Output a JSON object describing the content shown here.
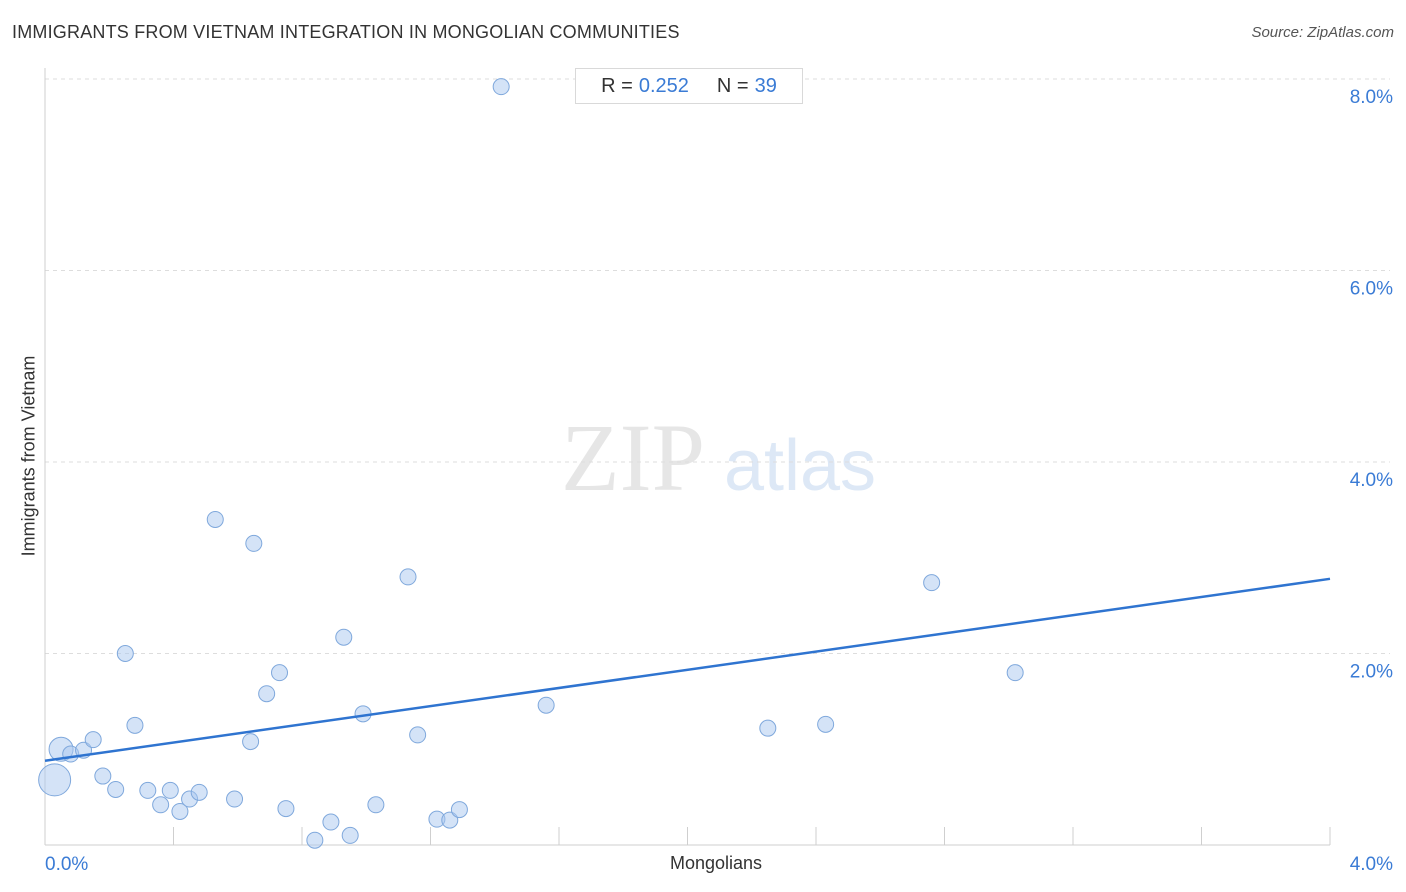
{
  "header": {
    "title": "IMMIGRANTS FROM VIETNAM INTEGRATION IN MONGOLIAN COMMUNITIES",
    "source": "Source: ZipAtlas.com"
  },
  "stats": {
    "r_label": "R =",
    "r_value": "0.252",
    "n_label": "N =",
    "n_value": "39"
  },
  "watermark": {
    "zip": "ZIP",
    "atlas": "atlas"
  },
  "colors": {
    "point_fill": "#a9c8f0",
    "point_stroke": "#7fa8dc",
    "trend_line": "#2f74d0",
    "tick_label": "#3a7bd5",
    "grid": "#dddddd"
  },
  "chart_data": {
    "type": "scatter",
    "xlabel": "Mongolians",
    "ylabel": "Immigrants from Vietnam",
    "xlim": [
      0,
      4.0
    ],
    "ylim": [
      0,
      8.0
    ],
    "x_tick_labels": [
      {
        "value": 0,
        "label": "0.0%"
      },
      {
        "value": 4.0,
        "label": "4.0%"
      }
    ],
    "y_tick_labels": [
      {
        "value": 2.0,
        "label": "2.0%"
      },
      {
        "value": 4.0,
        "label": "4.0%"
      },
      {
        "value": 6.0,
        "label": "6.0%"
      },
      {
        "value": 8.0,
        "label": "8.0%"
      }
    ],
    "grid": "horizontal dashed",
    "trend_line": {
      "x": [
        0,
        4.0
      ],
      "y": [
        0.88,
        2.78
      ]
    },
    "points": [
      {
        "x": 0.03,
        "y": 0.68,
        "size": "large"
      },
      {
        "x": 0.05,
        "y": 1.0,
        "size": "medium"
      },
      {
        "x": 0.08,
        "y": 0.95,
        "size": "small"
      },
      {
        "x": 0.12,
        "y": 0.99,
        "size": "small"
      },
      {
        "x": 0.15,
        "y": 1.1,
        "size": "small"
      },
      {
        "x": 0.18,
        "y": 0.72,
        "size": "small"
      },
      {
        "x": 0.22,
        "y": 0.58,
        "size": "small"
      },
      {
        "x": 0.25,
        "y": 2.0,
        "size": "small"
      },
      {
        "x": 0.28,
        "y": 1.25,
        "size": "small"
      },
      {
        "x": 0.32,
        "y": 0.57,
        "size": "small"
      },
      {
        "x": 0.36,
        "y": 0.42,
        "size": "small"
      },
      {
        "x": 0.39,
        "y": 0.57,
        "size": "small"
      },
      {
        "x": 0.42,
        "y": 0.35,
        "size": "small"
      },
      {
        "x": 0.45,
        "y": 0.48,
        "size": "small"
      },
      {
        "x": 0.48,
        "y": 0.55,
        "size": "small"
      },
      {
        "x": 0.53,
        "y": 3.4,
        "size": "small"
      },
      {
        "x": 0.59,
        "y": 0.48,
        "size": "small"
      },
      {
        "x": 0.64,
        "y": 1.08,
        "size": "small"
      },
      {
        "x": 0.65,
        "y": 3.15,
        "size": "small"
      },
      {
        "x": 0.69,
        "y": 1.58,
        "size": "small"
      },
      {
        "x": 0.73,
        "y": 1.8,
        "size": "small"
      },
      {
        "x": 0.75,
        "y": 0.38,
        "size": "small"
      },
      {
        "x": 0.84,
        "y": 0.05,
        "size": "small"
      },
      {
        "x": 0.89,
        "y": 0.24,
        "size": "small"
      },
      {
        "x": 0.93,
        "y": 2.17,
        "size": "small"
      },
      {
        "x": 0.95,
        "y": 0.1,
        "size": "small"
      },
      {
        "x": 0.99,
        "y": 1.37,
        "size": "small"
      },
      {
        "x": 1.03,
        "y": 0.42,
        "size": "small"
      },
      {
        "x": 1.13,
        "y": 2.8,
        "size": "small"
      },
      {
        "x": 1.16,
        "y": 1.15,
        "size": "small"
      },
      {
        "x": 1.22,
        "y": 0.27,
        "size": "small"
      },
      {
        "x": 1.26,
        "y": 0.26,
        "size": "small"
      },
      {
        "x": 1.29,
        "y": 0.37,
        "size": "small"
      },
      {
        "x": 1.42,
        "y": 7.92,
        "size": "small"
      },
      {
        "x": 1.56,
        "y": 1.46,
        "size": "small"
      },
      {
        "x": 2.25,
        "y": 1.22,
        "size": "small"
      },
      {
        "x": 2.43,
        "y": 1.26,
        "size": "small"
      },
      {
        "x": 2.76,
        "y": 2.74,
        "size": "small"
      },
      {
        "x": 3.02,
        "y": 1.8,
        "size": "small"
      }
    ]
  }
}
